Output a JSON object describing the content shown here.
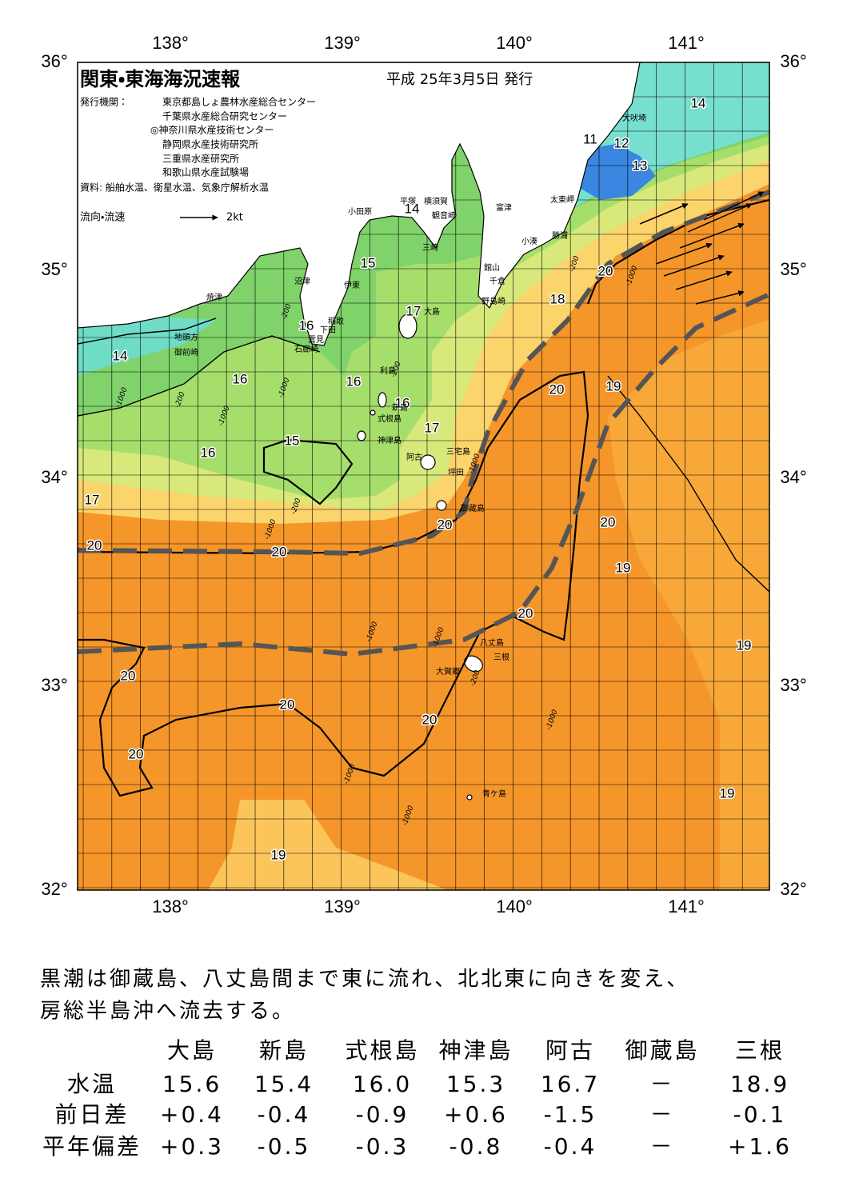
{
  "map": {
    "title": "関東・東海海況速報",
    "date": "平成 25年3月5日 発行",
    "agencies_label": "発行機関：",
    "agencies": [
      "東京都島しょ農林水産総合センター",
      "千葉県水産総合研究センター",
      "◎神奈川県水産技術センター",
      "静岡県水産技術研究所",
      "三重県水産研究所",
      "和歌山県水産試験場"
    ],
    "source": "資料: 船舶水温、衛星水温、気象庁解析水温",
    "legend": {
      "label": "流向・流速",
      "speed": "2kt"
    },
    "lon_labels": [
      "138°",
      "139°",
      "140°",
      "141°"
    ],
    "lat_labels": [
      "36°",
      "35°",
      "34°",
      "33°",
      "32°"
    ],
    "temperature_labels": [
      "14",
      "11",
      "12",
      "13",
      "14",
      "15",
      "20",
      "18",
      "17",
      "16",
      "14",
      "16",
      "16",
      "16",
      "20",
      "19",
      "17",
      "15",
      "16",
      "17",
      "20",
      "20",
      "20",
      "20",
      "19",
      "20",
      "19",
      "20",
      "20",
      "20",
      "20",
      "19",
      "19"
    ],
    "depth_labels": [
      "-200",
      "-1000",
      "-200",
      "-1000",
      "-200",
      "-1000",
      "-200",
      "-1000",
      "-1000",
      "-1000",
      "-200",
      "-1000",
      "-1000",
      "-1000",
      "-200",
      "-1000",
      "-1000"
    ],
    "place_names": [
      "犬吠埼",
      "太東岬",
      "勝浦",
      "小湊",
      "富津",
      "館山",
      "千倉",
      "野島崎",
      "横須賀",
      "観音崎",
      "平塚",
      "三崎",
      "小田原",
      "沼津",
      "伊東",
      "稲取",
      "下田",
      "雲見",
      "石廊崎",
      "焼津",
      "地頭方",
      "御前崎",
      "大島",
      "利島",
      "新島",
      "式根島",
      "神津島",
      "三宅島",
      "阿古",
      "坪田",
      "御蔵島",
      "八丈島",
      "三根",
      "大賀郷",
      "青ケ島"
    ]
  },
  "summary": [
    "黒潮は御蔵島、八丈島間まで東に流れ、北北東に向きを変え、",
    "房総半島沖へ流去する。"
  ],
  "table": {
    "columns": [
      "大島",
      "新島",
      "式根島",
      "神津島",
      "阿古",
      "御蔵島",
      "三根"
    ],
    "rows": [
      {
        "label": "水温",
        "values": [
          "15.6",
          "15.4",
          "16.0",
          "15.3",
          "16.7",
          "－",
          "18.9"
        ]
      },
      {
        "label": "前日差",
        "values": [
          "+0.4",
          "-0.4",
          "-0.9",
          "+0.6",
          "-1.5",
          "－",
          "-0.1"
        ]
      },
      {
        "label": "平年偏差",
        "values": [
          "+0.3",
          "-0.5",
          "-0.3",
          "-0.8",
          "-0.4",
          "－",
          "+1.6"
        ]
      }
    ]
  }
}
